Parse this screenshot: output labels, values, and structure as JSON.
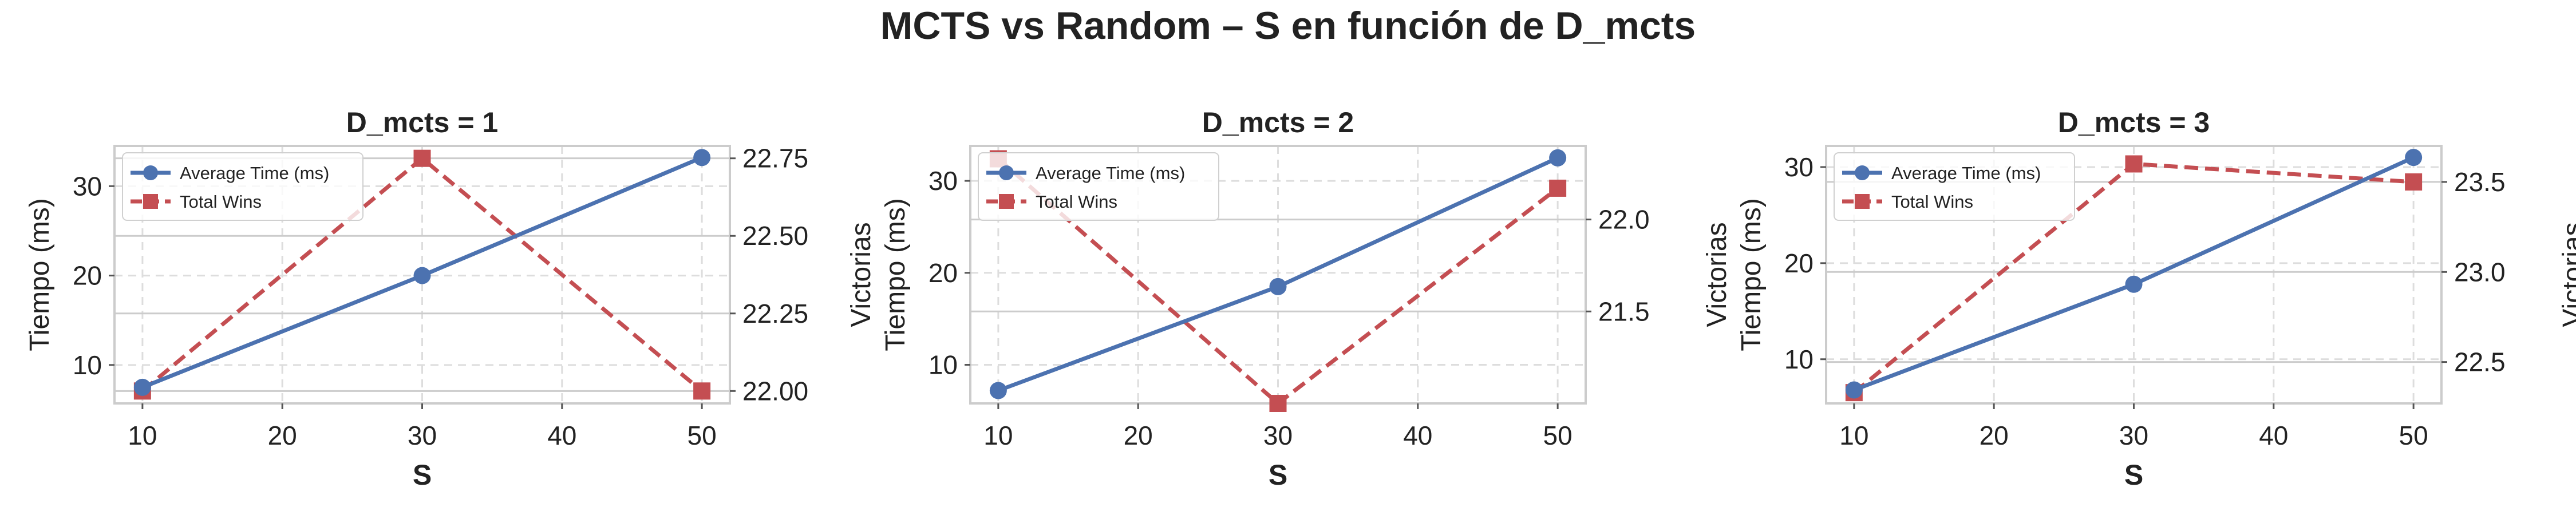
{
  "figure": {
    "title": "MCTS vs Random – S en función de D_mcts"
  },
  "colors": {
    "time": "#4c72b0",
    "wins": "#c44e52",
    "grid": "#dddddd",
    "axis": "#cccccc",
    "text": "#222222"
  },
  "chart_data": [
    {
      "type": "line",
      "title": "D_mcts = 1",
      "xlabel": "S",
      "ylabel": "Tiempo (ms)",
      "y2label": "Victorias",
      "x": [
        10,
        30,
        50
      ],
      "xticks": [
        10,
        20,
        30,
        40,
        50
      ],
      "xlim": [
        8.0,
        52.0
      ],
      "ylim": [
        5.7,
        34.5
      ],
      "yticks": [
        10,
        20,
        30
      ],
      "y2lim": [
        21.96,
        22.79
      ],
      "y2ticks": [
        "22.00",
        "22.25",
        "22.50",
        "22.75"
      ],
      "grid": true,
      "legend_position": "top-left",
      "series": [
        {
          "name": "Average Time (ms)",
          "axis": "left",
          "style": "solid",
          "marker": "circle",
          "values": [
            7.5,
            20.0,
            33.2
          ]
        },
        {
          "name": "Total Wins",
          "axis": "right",
          "style": "dashed",
          "marker": "square",
          "values": [
            22.0,
            22.75,
            22.0
          ]
        }
      ]
    },
    {
      "type": "line",
      "title": "D_mcts = 2",
      "xlabel": "S",
      "ylabel": "Tiempo (ms)",
      "y2label": "Victorias",
      "x": [
        10,
        30,
        50
      ],
      "xticks": [
        10,
        20,
        30,
        40,
        50
      ],
      "xlim": [
        8.0,
        52.0
      ],
      "ylim": [
        5.8,
        33.8
      ],
      "yticks": [
        10,
        20,
        30
      ],
      "y2lim": [
        21.0,
        22.4
      ],
      "y2ticks": [
        "21.5",
        "22.0"
      ],
      "grid": true,
      "legend_position": "top-left",
      "series": [
        {
          "name": "Average Time (ms)",
          "axis": "left",
          "style": "solid",
          "marker": "circle",
          "values": [
            7.2,
            18.5,
            32.5
          ]
        },
        {
          "name": "Total Wins",
          "axis": "right",
          "style": "dashed",
          "marker": "square",
          "values": [
            22.33,
            21.0,
            22.17
          ]
        }
      ]
    },
    {
      "type": "line",
      "title": "D_mcts = 3",
      "xlabel": "S",
      "ylabel": "Tiempo (ms)",
      "y2label": "Victorias",
      "x": [
        10,
        30,
        50
      ],
      "xticks": [
        10,
        20,
        30,
        40,
        50
      ],
      "xlim": [
        8.0,
        52.0
      ],
      "ylim": [
        5.4,
        32.2
      ],
      "yticks": [
        10,
        20,
        30
      ],
      "y2lim": [
        22.27,
        23.7
      ],
      "y2ticks": [
        "22.5",
        "23.0",
        "23.5"
      ],
      "grid": true,
      "legend_position": "top-left",
      "series": [
        {
          "name": "Average Time (ms)",
          "axis": "left",
          "style": "solid",
          "marker": "circle",
          "values": [
            6.8,
            17.8,
            31.0
          ]
        },
        {
          "name": "Total Wins",
          "axis": "right",
          "style": "dashed",
          "marker": "square",
          "values": [
            22.33,
            23.6,
            23.5
          ]
        }
      ]
    }
  ]
}
